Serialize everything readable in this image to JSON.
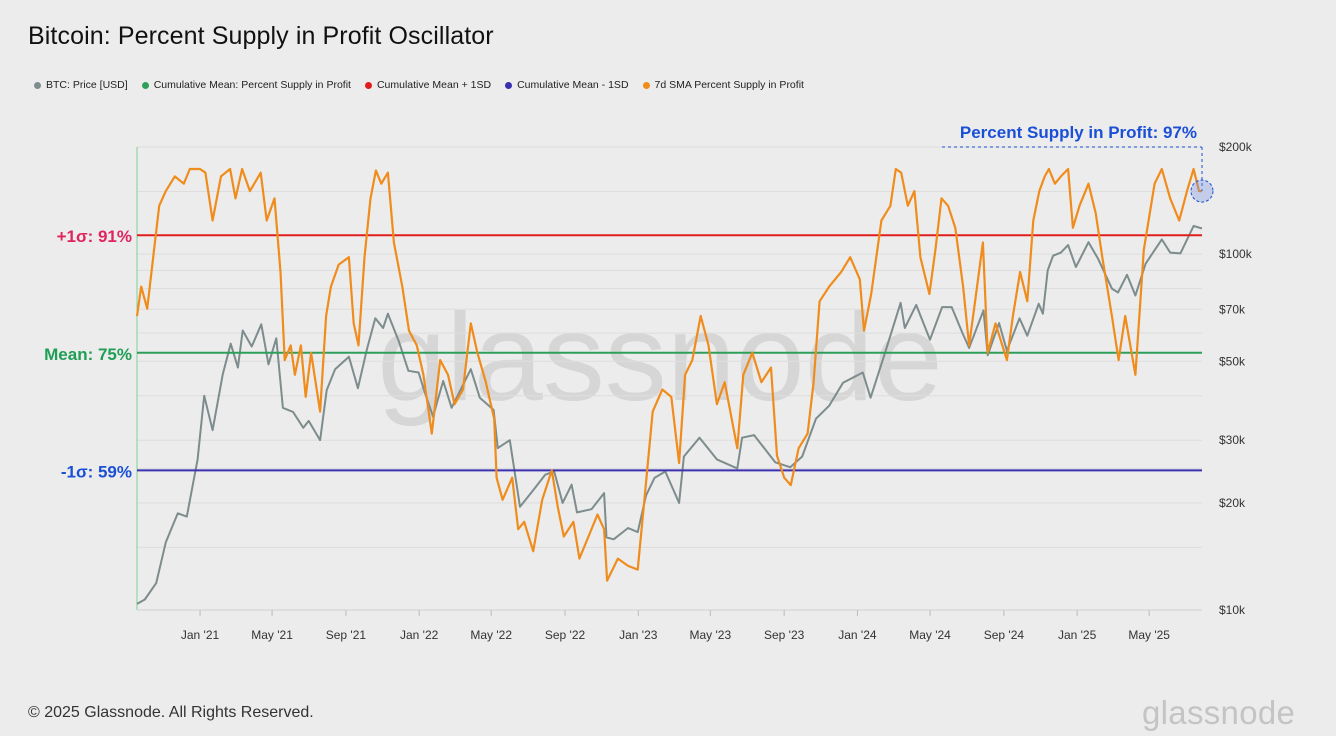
{
  "title": "Bitcoin: Percent Supply in Profit Oscillator",
  "legend": [
    {
      "label": "BTC: Price [USD]",
      "color": "#7d8c8c"
    },
    {
      "label": "Cumulative Mean: Percent Supply in Profit",
      "color": "#2e9e5b"
    },
    {
      "label": "Cumulative Mean + 1SD",
      "color": "#e01e1e"
    },
    {
      "label": "Cumulative Mean - 1SD",
      "color": "#3a2fb0"
    },
    {
      "label": "7d SMA Percent Supply in Profit",
      "color": "#f08c1c"
    }
  ],
  "footer": "© 2025 Glassnode. All Rights Reserved.",
  "brand": "glassnode",
  "watermark": "glassnode",
  "chart_data": {
    "type": "line",
    "x_ticks": [
      "Jan '21",
      "May '21",
      "Sep '21",
      "Jan '22",
      "May '22",
      "Sep '22",
      "Jan '23",
      "May '23",
      "Sep '23",
      "Jan '24",
      "May '24",
      "Sep '24",
      "Jan '25",
      "May '25"
    ],
    "y_right_axis": {
      "scale": "log",
      "range": [
        10000,
        200000
      ],
      "ticks": [
        {
          "v": 10000,
          "label": "$10k"
        },
        {
          "v": 20000,
          "label": "$20k"
        },
        {
          "v": 30000,
          "label": "$30k"
        },
        {
          "v": 50000,
          "label": "$50k"
        },
        {
          "v": 70000,
          "label": "$70k"
        },
        {
          "v": 100000,
          "label": "$100k"
        },
        {
          "v": 200000,
          "label": "$200k"
        }
      ]
    },
    "y_left_axis": {
      "unit": "percent",
      "range": [
        40,
        103
      ]
    },
    "grid": "horizontal",
    "reference_lines": [
      {
        "name": "Cumulative Mean + 1SD",
        "label": "+1σ: 91%",
        "value": 91,
        "color": "#e01e1e",
        "label_color": "#e0245e"
      },
      {
        "name": "Cumulative Mean: Percent Supply in Profit",
        "label": "Mean: 75%",
        "value": 75,
        "color": "#2e9e5b",
        "label_color": "#1f9e56"
      },
      {
        "name": "Cumulative Mean - 1SD",
        "label": "-1σ: 59%",
        "value": 59,
        "color": "#3a2fb0",
        "label_color": "#1a4fd6"
      }
    ],
    "annotation": {
      "text": "Percent Supply in Profit: 97%",
      "value": 97,
      "color": "#1a4fd6"
    },
    "series": [
      {
        "name": "BTC: Price [USD]",
        "color": "#7d8c8c",
        "axis": "right",
        "points": [
          [
            "2020-09-18",
            10400
          ],
          [
            "2020-10-01",
            10700
          ],
          [
            "2020-10-20",
            11900
          ],
          [
            "2020-11-05",
            15500
          ],
          [
            "2020-11-25",
            18700
          ],
          [
            "2020-12-10",
            18300
          ],
          [
            "2020-12-28",
            26500
          ],
          [
            "2021-01-08",
            40000
          ],
          [
            "2021-01-22",
            32000
          ],
          [
            "2021-02-08",
            46000
          ],
          [
            "2021-02-21",
            56000
          ],
          [
            "2021-03-05",
            48000
          ],
          [
            "2021-03-13",
            61000
          ],
          [
            "2021-03-28",
            55000
          ],
          [
            "2021-04-13",
            63500
          ],
          [
            "2021-04-25",
            49000
          ],
          [
            "2021-05-08",
            58000
          ],
          [
            "2021-05-19",
            37000
          ],
          [
            "2021-06-05",
            36000
          ],
          [
            "2021-06-22",
            32500
          ],
          [
            "2021-07-01",
            34000
          ],
          [
            "2021-07-20",
            30000
          ],
          [
            "2021-07-31",
            41500
          ],
          [
            "2021-08-14",
            47500
          ],
          [
            "2021-09-06",
            51500
          ],
          [
            "2021-09-21",
            42000
          ],
          [
            "2021-10-06",
            54000
          ],
          [
            "2021-10-20",
            66000
          ],
          [
            "2021-11-02",
            62000
          ],
          [
            "2021-11-10",
            68000
          ],
          [
            "2021-11-28",
            57000
          ],
          [
            "2021-12-14",
            47000
          ],
          [
            "2021-12-31",
            46500
          ],
          [
            "2022-01-10",
            41000
          ],
          [
            "2022-01-24",
            35000
          ],
          [
            "2022-02-10",
            44000
          ],
          [
            "2022-02-24",
            37000
          ],
          [
            "2022-03-28",
            47500
          ],
          [
            "2022-04-12",
            39500
          ],
          [
            "2022-05-05",
            36500
          ],
          [
            "2022-05-12",
            28500
          ],
          [
            "2022-06-01",
            30000
          ],
          [
            "2022-06-18",
            19500
          ],
          [
            "2022-07-08",
            21500
          ],
          [
            "2022-07-30",
            24000
          ],
          [
            "2022-08-14",
            24500
          ],
          [
            "2022-08-28",
            20000
          ],
          [
            "2022-09-12",
            22500
          ],
          [
            "2022-09-21",
            18800
          ],
          [
            "2022-10-15",
            19200
          ],
          [
            "2022-11-05",
            21300
          ],
          [
            "2022-11-09",
            16000
          ],
          [
            "2022-11-21",
            15800
          ],
          [
            "2022-12-15",
            17000
          ],
          [
            "2022-12-31",
            16550
          ],
          [
            "2023-01-14",
            21000
          ],
          [
            "2023-01-28",
            23500
          ],
          [
            "2023-02-15",
            24500
          ],
          [
            "2023-03-10",
            20000
          ],
          [
            "2023-03-18",
            27000
          ],
          [
            "2023-04-13",
            30500
          ],
          [
            "2023-05-12",
            26500
          ],
          [
            "2023-06-15",
            25000
          ],
          [
            "2023-06-23",
            30500
          ],
          [
            "2023-07-13",
            31000
          ],
          [
            "2023-08-17",
            26000
          ],
          [
            "2023-09-11",
            25200
          ],
          [
            "2023-10-01",
            27000
          ],
          [
            "2023-10-24",
            34500
          ],
          [
            "2023-11-15",
            37500
          ],
          [
            "2023-12-08",
            43500
          ],
          [
            "2024-01-10",
            46500
          ],
          [
            "2024-01-23",
            39500
          ],
          [
            "2024-02-14",
            51500
          ],
          [
            "2024-03-05",
            66000
          ],
          [
            "2024-03-13",
            73000
          ],
          [
            "2024-03-20",
            62000
          ],
          [
            "2024-04-08",
            72000
          ],
          [
            "2024-05-01",
            57500
          ],
          [
            "2024-05-21",
            71000
          ],
          [
            "2024-06-06",
            71000
          ],
          [
            "2024-06-24",
            60000
          ],
          [
            "2024-07-05",
            54500
          ],
          [
            "2024-07-29",
            69500
          ],
          [
            "2024-08-05",
            52000
          ],
          [
            "2024-08-24",
            64000
          ],
          [
            "2024-09-06",
            53500
          ],
          [
            "2024-09-27",
            66000
          ],
          [
            "2024-10-10",
            59000
          ],
          [
            "2024-10-29",
            72500
          ],
          [
            "2024-11-05",
            68000
          ],
          [
            "2024-11-13",
            90000
          ],
          [
            "2024-11-22",
            99000
          ],
          [
            "2024-12-05",
            101000
          ],
          [
            "2024-12-17",
            106000
          ],
          [
            "2024-12-30",
            92000
          ],
          [
            "2025-01-20",
            108000
          ],
          [
            "2025-02-05",
            97000
          ],
          [
            "2025-02-28",
            80000
          ],
          [
            "2025-03-10",
            78000
          ],
          [
            "2025-03-25",
            87500
          ],
          [
            "2025-04-08",
            76500
          ],
          [
            "2025-04-25",
            94000
          ],
          [
            "2025-05-22",
            110000
          ],
          [
            "2025-06-05",
            101000
          ],
          [
            "2025-06-22",
            100500
          ],
          [
            "2025-07-14",
            120000
          ],
          [
            "2025-07-28",
            118000
          ]
        ]
      },
      {
        "name": "7d SMA Percent Supply in Profit",
        "color": "#f08c1c",
        "axis": "left",
        "points": [
          [
            "2020-09-18",
            80
          ],
          [
            "2020-09-25",
            84
          ],
          [
            "2020-10-05",
            81
          ],
          [
            "2020-10-15",
            88
          ],
          [
            "2020-10-25",
            95
          ],
          [
            "2020-11-05",
            97
          ],
          [
            "2020-11-20",
            99
          ],
          [
            "2020-12-05",
            98
          ],
          [
            "2020-12-15",
            100
          ],
          [
            "2021-01-01",
            100
          ],
          [
            "2021-01-10",
            99.5
          ],
          [
            "2021-01-22",
            93
          ],
          [
            "2021-02-05",
            99
          ],
          [
            "2021-02-20",
            100
          ],
          [
            "2021-03-01",
            96
          ],
          [
            "2021-03-12",
            100
          ],
          [
            "2021-03-25",
            97
          ],
          [
            "2021-04-12",
            99.5
          ],
          [
            "2021-04-22",
            93
          ],
          [
            "2021-05-05",
            96
          ],
          [
            "2021-05-15",
            86
          ],
          [
            "2021-05-22",
            74
          ],
          [
            "2021-06-01",
            76
          ],
          [
            "2021-06-08",
            72
          ],
          [
            "2021-06-18",
            76
          ],
          [
            "2021-06-26",
            69
          ],
          [
            "2021-07-05",
            75
          ],
          [
            "2021-07-20",
            67
          ],
          [
            "2021-07-30",
            80
          ],
          [
            "2021-08-07",
            84
          ],
          [
            "2021-08-20",
            87
          ],
          [
            "2021-09-06",
            88
          ],
          [
            "2021-09-14",
            79
          ],
          [
            "2021-09-22",
            76
          ],
          [
            "2021-10-02",
            88
          ],
          [
            "2021-10-12",
            96
          ],
          [
            "2021-10-21",
            99.8
          ],
          [
            "2021-10-30",
            98
          ],
          [
            "2021-11-10",
            99.5
          ],
          [
            "2021-11-20",
            90
          ],
          [
            "2021-12-04",
            84
          ],
          [
            "2021-12-15",
            78
          ],
          [
            "2021-12-28",
            76
          ],
          [
            "2022-01-08",
            72
          ],
          [
            "2022-01-22",
            64
          ],
          [
            "2022-02-05",
            74
          ],
          [
            "2022-02-18",
            72
          ],
          [
            "2022-03-01",
            68
          ],
          [
            "2022-03-15",
            70
          ],
          [
            "2022-03-28",
            79
          ],
          [
            "2022-04-08",
            75
          ],
          [
            "2022-04-22",
            71
          ],
          [
            "2022-05-06",
            66
          ],
          [
            "2022-05-10",
            58
          ],
          [
            "2022-05-20",
            55
          ],
          [
            "2022-06-05",
            58
          ],
          [
            "2022-06-15",
            51
          ],
          [
            "2022-06-25",
            52
          ],
          [
            "2022-07-10",
            48
          ],
          [
            "2022-07-25",
            55
          ],
          [
            "2022-08-10",
            59
          ],
          [
            "2022-08-20",
            54
          ],
          [
            "2022-08-30",
            50
          ],
          [
            "2022-09-15",
            52
          ],
          [
            "2022-09-25",
            47
          ],
          [
            "2022-10-10",
            50
          ],
          [
            "2022-10-25",
            53
          ],
          [
            "2022-11-05",
            51
          ],
          [
            "2022-11-10",
            44
          ],
          [
            "2022-11-28",
            47
          ],
          [
            "2022-12-15",
            46
          ],
          [
            "2022-12-31",
            45.5
          ],
          [
            "2023-01-10",
            54
          ],
          [
            "2023-01-25",
            67
          ],
          [
            "2023-02-10",
            70
          ],
          [
            "2023-02-25",
            69
          ],
          [
            "2023-03-10",
            60
          ],
          [
            "2023-03-20",
            72
          ],
          [
            "2023-04-01",
            74
          ],
          [
            "2023-04-15",
            80
          ],
          [
            "2023-04-28",
            76
          ],
          [
            "2023-05-12",
            68
          ],
          [
            "2023-05-25",
            71
          ],
          [
            "2023-06-15",
            62
          ],
          [
            "2023-06-25",
            72
          ],
          [
            "2023-07-10",
            75
          ],
          [
            "2023-07-25",
            71
          ],
          [
            "2023-08-10",
            73
          ],
          [
            "2023-08-20",
            61
          ],
          [
            "2023-09-01",
            58
          ],
          [
            "2023-09-12",
            57
          ],
          [
            "2023-09-25",
            62
          ],
          [
            "2023-10-10",
            64
          ],
          [
            "2023-10-20",
            71
          ],
          [
            "2023-10-30",
            82
          ],
          [
            "2023-11-15",
            84
          ],
          [
            "2023-12-05",
            86
          ],
          [
            "2023-12-20",
            88
          ],
          [
            "2024-01-05",
            85
          ],
          [
            "2024-01-12",
            78
          ],
          [
            "2024-01-24",
            83
          ],
          [
            "2024-02-10",
            93
          ],
          [
            "2024-02-25",
            95
          ],
          [
            "2024-03-05",
            100
          ],
          [
            "2024-03-14",
            99.5
          ],
          [
            "2024-03-25",
            95
          ],
          [
            "2024-04-05",
            97
          ],
          [
            "2024-04-15",
            88
          ],
          [
            "2024-04-30",
            83
          ],
          [
            "2024-05-10",
            89
          ],
          [
            "2024-05-20",
            96
          ],
          [
            "2024-05-31",
            95
          ],
          [
            "2024-06-12",
            92
          ],
          [
            "2024-06-25",
            84
          ],
          [
            "2024-07-05",
            76
          ],
          [
            "2024-07-15",
            82
          ],
          [
            "2024-07-28",
            90
          ],
          [
            "2024-08-05",
            75
          ],
          [
            "2024-08-18",
            79
          ],
          [
            "2024-09-06",
            74
          ],
          [
            "2024-09-16",
            80
          ],
          [
            "2024-09-28",
            86
          ],
          [
            "2024-10-10",
            82
          ],
          [
            "2024-10-20",
            93
          ],
          [
            "2024-10-30",
            97
          ],
          [
            "2024-11-08",
            99
          ],
          [
            "2024-11-15",
            100
          ],
          [
            "2024-11-25",
            98
          ],
          [
            "2024-12-05",
            99
          ],
          [
            "2024-12-17",
            100
          ],
          [
            "2024-12-25",
            92
          ],
          [
            "2025-01-05",
            95
          ],
          [
            "2025-01-20",
            98
          ],
          [
            "2025-02-01",
            94
          ],
          [
            "2025-02-12",
            88
          ],
          [
            "2025-02-28",
            80
          ],
          [
            "2025-03-11",
            74
          ],
          [
            "2025-03-22",
            80
          ],
          [
            "2025-04-08",
            72
          ],
          [
            "2025-04-22",
            89
          ],
          [
            "2025-05-10",
            98
          ],
          [
            "2025-05-22",
            100
          ],
          [
            "2025-06-05",
            96
          ],
          [
            "2025-06-20",
            93
          ],
          [
            "2025-07-03",
            97
          ],
          [
            "2025-07-14",
            100
          ],
          [
            "2025-07-23",
            97
          ],
          [
            "2025-07-28",
            97
          ]
        ]
      }
    ]
  }
}
